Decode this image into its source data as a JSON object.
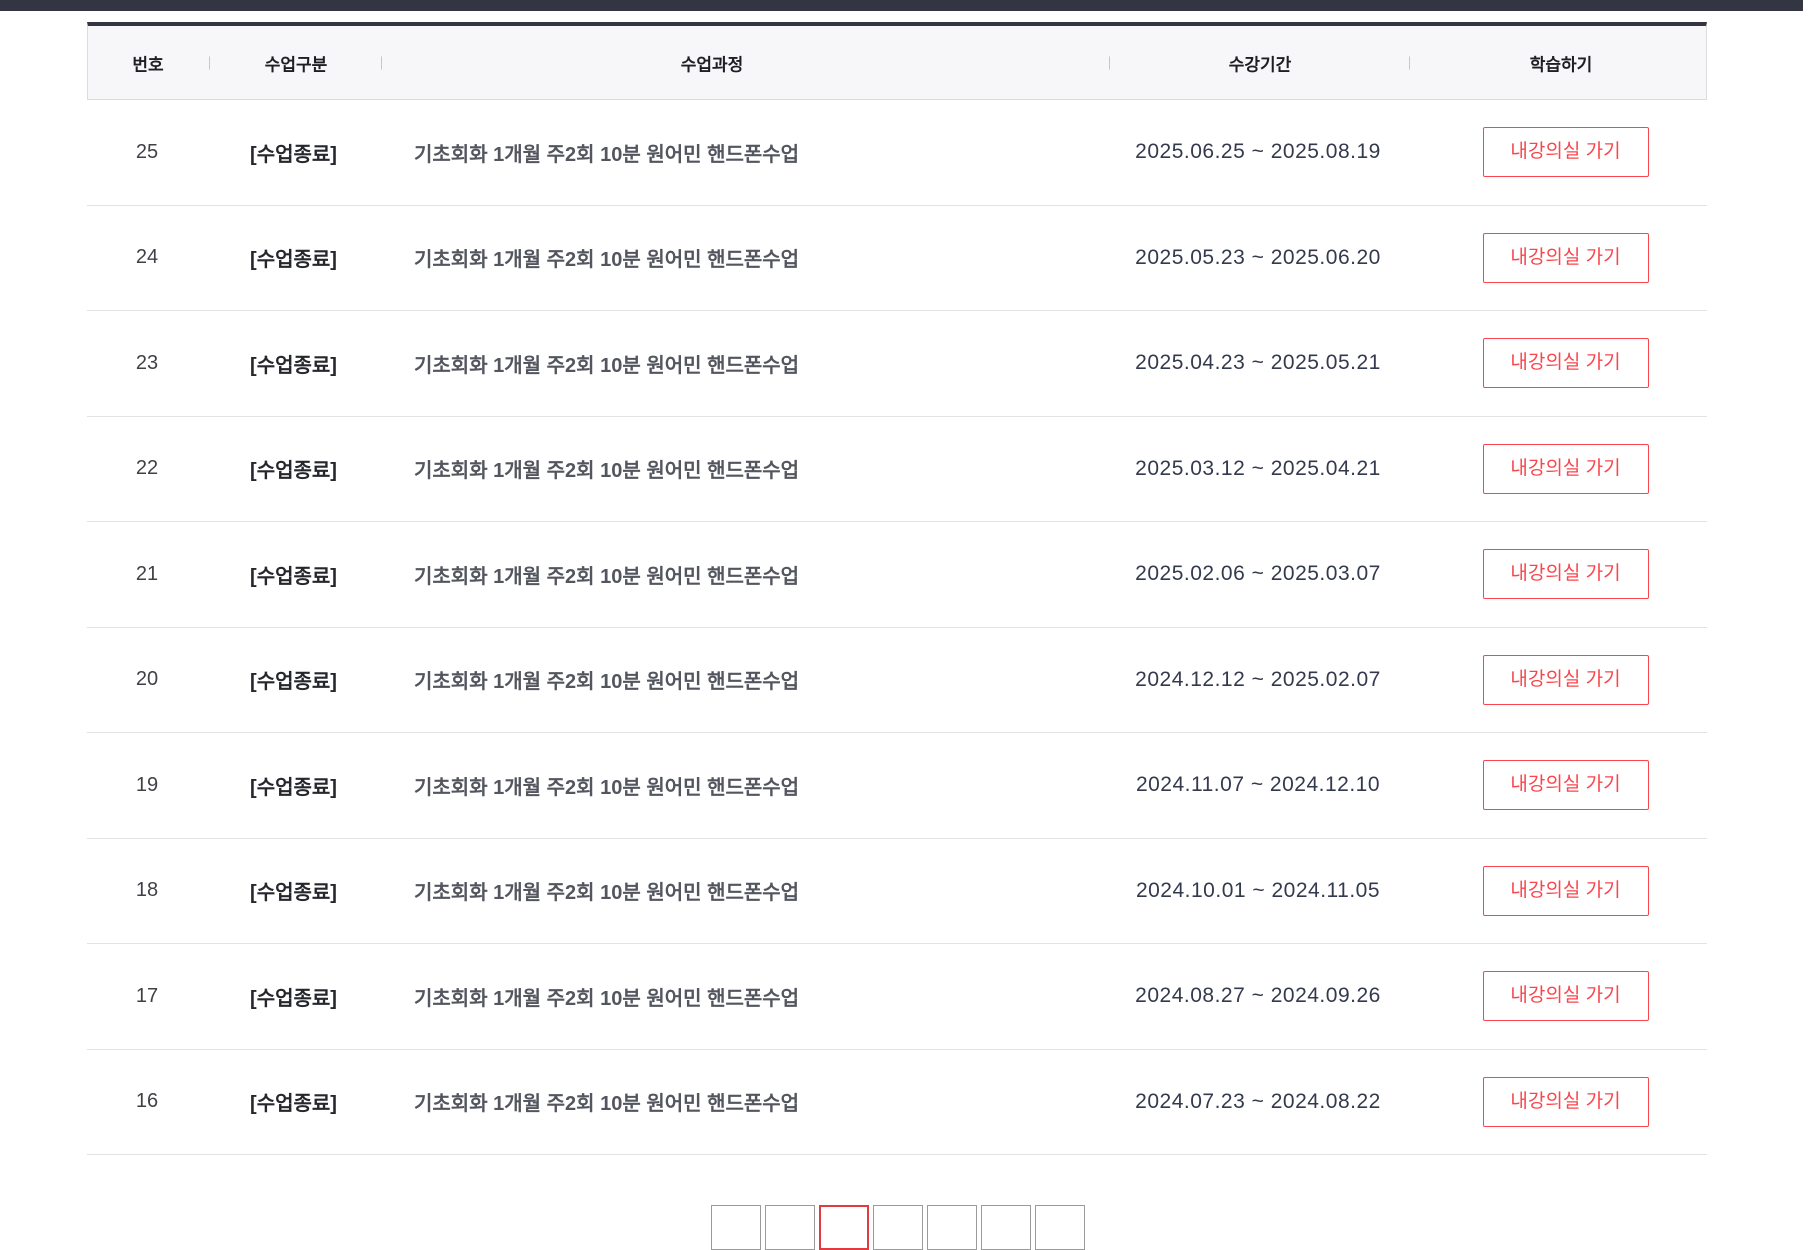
{
  "colors": {
    "topbar": "#343542",
    "accent_red": "#f9464d",
    "pagination_active_border": "#e43a3f",
    "header_bg": "#f7f7f9"
  },
  "table": {
    "headers": [
      "번호",
      "수업구분",
      "수업과정",
      "수강기간",
      "학습하기"
    ],
    "rows": [
      {
        "no": "25",
        "type": "[수업종료]",
        "course": "기초회화 1개월 주2회 10분 원어민 핸드폰수업",
        "period": "2025.06.25 ~ 2025.08.19",
        "action": "내강의실 가기"
      },
      {
        "no": "24",
        "type": "[수업종료]",
        "course": "기초회화 1개월 주2회 10분 원어민 핸드폰수업",
        "period": "2025.05.23 ~ 2025.06.20",
        "action": "내강의실 가기"
      },
      {
        "no": "23",
        "type": "[수업종료]",
        "course": "기초회화 1개월 주2회 10분 원어민 핸드폰수업",
        "period": "2025.04.23 ~ 2025.05.21",
        "action": "내강의실 가기"
      },
      {
        "no": "22",
        "type": "[수업종료]",
        "course": "기초회화 1개월 주2회 10분 원어민 핸드폰수업",
        "period": "2025.03.12 ~ 2025.04.21",
        "action": "내강의실 가기"
      },
      {
        "no": "21",
        "type": "[수업종료]",
        "course": "기초회화 1개월 주2회 10분 원어민 핸드폰수업",
        "period": "2025.02.06 ~ 2025.03.07",
        "action": "내강의실 가기"
      },
      {
        "no": "20",
        "type": "[수업종료]",
        "course": "기초회화 1개월 주2회 10분 원어민 핸드폰수업",
        "period": "2024.12.12 ~ 2025.02.07",
        "action": "내강의실 가기"
      },
      {
        "no": "19",
        "type": "[수업종료]",
        "course": "기초회화 1개월 주2회 10분 원어민 핸드폰수업",
        "period": "2024.11.07 ~ 2024.12.10",
        "action": "내강의실 가기"
      },
      {
        "no": "18",
        "type": "[수업종료]",
        "course": "기초회화 1개월 주2회 10분 원어민 핸드폰수업",
        "period": "2024.10.01 ~ 2024.11.05",
        "action": "내강의실 가기"
      },
      {
        "no": "17",
        "type": "[수업종료]",
        "course": "기초회화 1개월 주2회 10분 원어민 핸드폰수업",
        "period": "2024.08.27 ~ 2024.09.26",
        "action": "내강의실 가기"
      },
      {
        "no": "16",
        "type": "[수업종료]",
        "course": "기초회화 1개월 주2회 10분 원어민 핸드폰수업",
        "period": "2024.07.23 ~ 2024.08.22",
        "action": "내강의실 가기"
      }
    ]
  },
  "pagination": {
    "boxes": [
      {
        "label": "",
        "active": false
      },
      {
        "label": "",
        "active": false
      },
      {
        "label": "",
        "active": true
      },
      {
        "label": "",
        "active": false
      },
      {
        "label": "",
        "active": false
      },
      {
        "label": "",
        "active": false
      },
      {
        "label": "",
        "active": false
      }
    ]
  }
}
